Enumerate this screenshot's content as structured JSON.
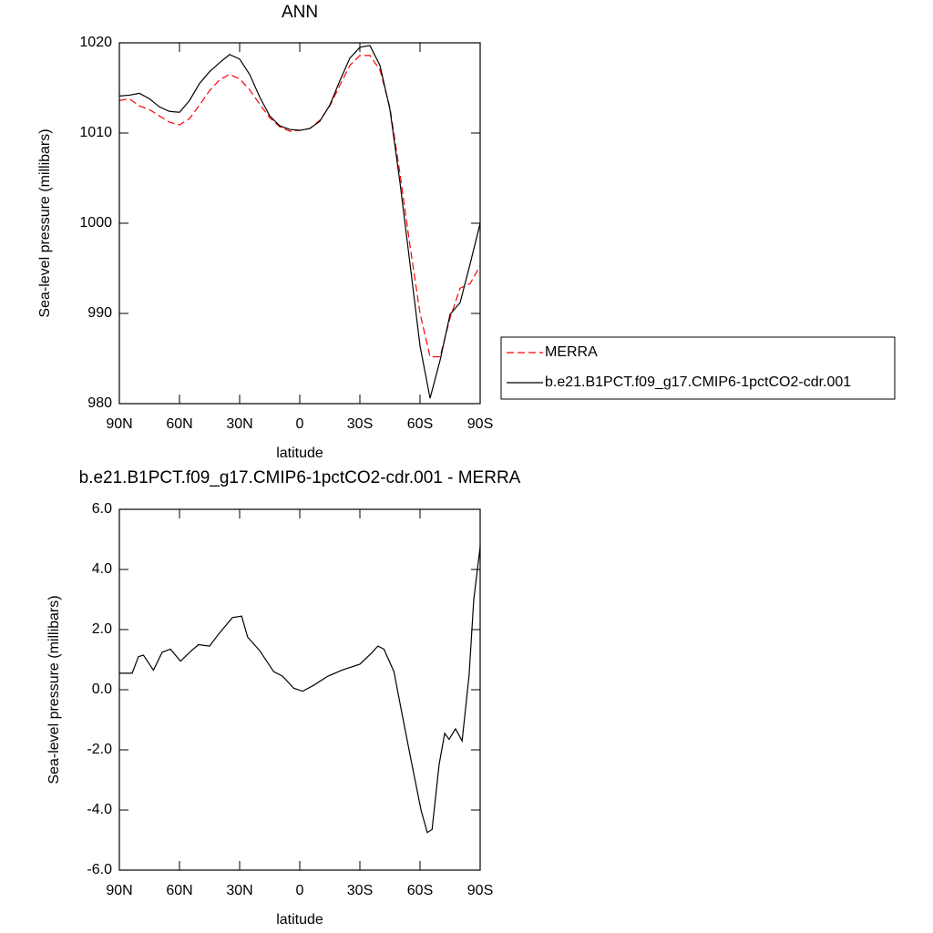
{
  "chart_data": [
    {
      "type": "line",
      "title": "ANN",
      "xlabel": "latitude",
      "ylabel": "Sea-level pressure (millibars)",
      "x": [
        90,
        85,
        80,
        75,
        70,
        65,
        60,
        55,
        50,
        45,
        40,
        35,
        30,
        25,
        20,
        15,
        10,
        5,
        0,
        -5,
        -10,
        -15,
        -20,
        -25,
        -30,
        -35,
        -40,
        -45,
        -50,
        -55,
        -60,
        -65,
        -70,
        -75,
        -80,
        -85,
        -90
      ],
      "series": [
        {
          "name": "MERRA",
          "color": "#ff0000",
          "line_style": "dashed",
          "values": [
            1013.6,
            1013.8,
            1013.0,
            1012.6,
            1011.9,
            1011.2,
            1010.9,
            1011.6,
            1013.1,
            1014.7,
            1015.9,
            1016.5,
            1016.0,
            1014.8,
            1013.2,
            1011.7,
            1010.7,
            1010.2,
            1010.3,
            1010.5,
            1011.4,
            1013.0,
            1015.3,
            1017.5,
            1018.6,
            1018.6,
            1017.0,
            1012.8,
            1005.5,
            997.5,
            990.0,
            985.2,
            985.2,
            989.5,
            992.8,
            993.3,
            995.3
          ]
        },
        {
          "name": "b.e21.B1PCT.f09_g17.CMIP6-1pctCO2-cdr.001",
          "color": "#000000",
          "line_style": "solid",
          "values": [
            1014.1,
            1014.2,
            1014.4,
            1013.8,
            1012.9,
            1012.4,
            1012.3,
            1013.6,
            1015.5,
            1016.8,
            1017.8,
            1018.7,
            1018.2,
            1016.5,
            1014.0,
            1011.9,
            1010.8,
            1010.4,
            1010.3,
            1010.5,
            1011.3,
            1013.1,
            1015.8,
            1018.3,
            1019.5,
            1019.7,
            1017.5,
            1012.6,
            1004.5,
            995.5,
            986.4,
            980.6,
            984.8,
            989.9,
            991.2,
            995.5,
            1000.0
          ]
        }
      ],
      "xlim": [
        90,
        -90
      ],
      "xticks": [
        {
          "value": 90,
          "label": "90N"
        },
        {
          "value": 60,
          "label": "60N"
        },
        {
          "value": 30,
          "label": "30N"
        },
        0,
        {
          "value": -30,
          "label": "30S"
        },
        {
          "value": -60,
          "label": "60S"
        },
        {
          "value": -90,
          "label": "90S"
        }
      ],
      "ylim": [
        980,
        1020
      ],
      "yticks": [
        980,
        990,
        1000,
        1010,
        1020
      ],
      "legend": "right"
    },
    {
      "type": "line",
      "title": "b.e21.B1PCT.f09_g17.CMIP6-1pctCO2-cdr.001 - MERRA",
      "xlabel": "latitude",
      "ylabel": "Sea-level pressure (millibars)",
      "x": [
        90,
        83.6,
        80.5,
        78,
        73,
        68.6,
        64.5,
        59.5,
        54,
        50.5,
        45,
        40.5,
        33.6,
        29,
        26,
        20,
        13,
        8.6,
        3,
        -1.4,
        -7,
        -14,
        -21,
        -30,
        -35.5,
        -39,
        -42,
        -47,
        -51,
        -56,
        -60.5,
        -63.6,
        -66,
        -69.5,
        -72.3,
        -74.5,
        -77.7,
        -81,
        -84.5,
        -86.8,
        -90
      ],
      "series": [
        {
          "color": "#000000",
          "line_style": "solid",
          "values": [
            0.55,
            0.55,
            1.1,
            1.15,
            0.65,
            1.25,
            1.35,
            0.95,
            1.3,
            1.5,
            1.45,
            1.85,
            2.4,
            2.45,
            1.75,
            1.3,
            0.6,
            0.45,
            0.05,
            -0.05,
            0.15,
            0.45,
            0.65,
            0.85,
            1.2,
            1.45,
            1.35,
            0.6,
            -0.8,
            -2.5,
            -4.0,
            -4.75,
            -4.65,
            -2.5,
            -1.45,
            -1.65,
            -1.3,
            -1.7,
            0.5,
            3.0,
            4.75
          ]
        }
      ],
      "xlim": [
        90,
        -90
      ],
      "xticks": [
        {
          "value": 90,
          "label": "90N"
        },
        {
          "value": 60,
          "label": "60N"
        },
        {
          "value": 30,
          "label": "30N"
        },
        0,
        {
          "value": -30,
          "label": "30S"
        },
        {
          "value": -60,
          "label": "60S"
        },
        {
          "value": -90,
          "label": "90S"
        }
      ],
      "ylim": [
        -6,
        6
      ],
      "yticks": [
        {
          "value": -6,
          "label": "-6.0"
        },
        {
          "value": -4,
          "label": "-4.0"
        },
        {
          "value": -2,
          "label": "-2.0"
        },
        {
          "value": 0,
          "label": "0.0"
        },
        {
          "value": 2,
          "label": "2.0"
        },
        {
          "value": 4,
          "label": "4.0"
        },
        {
          "value": 6,
          "label": "6.0"
        }
      ]
    }
  ]
}
